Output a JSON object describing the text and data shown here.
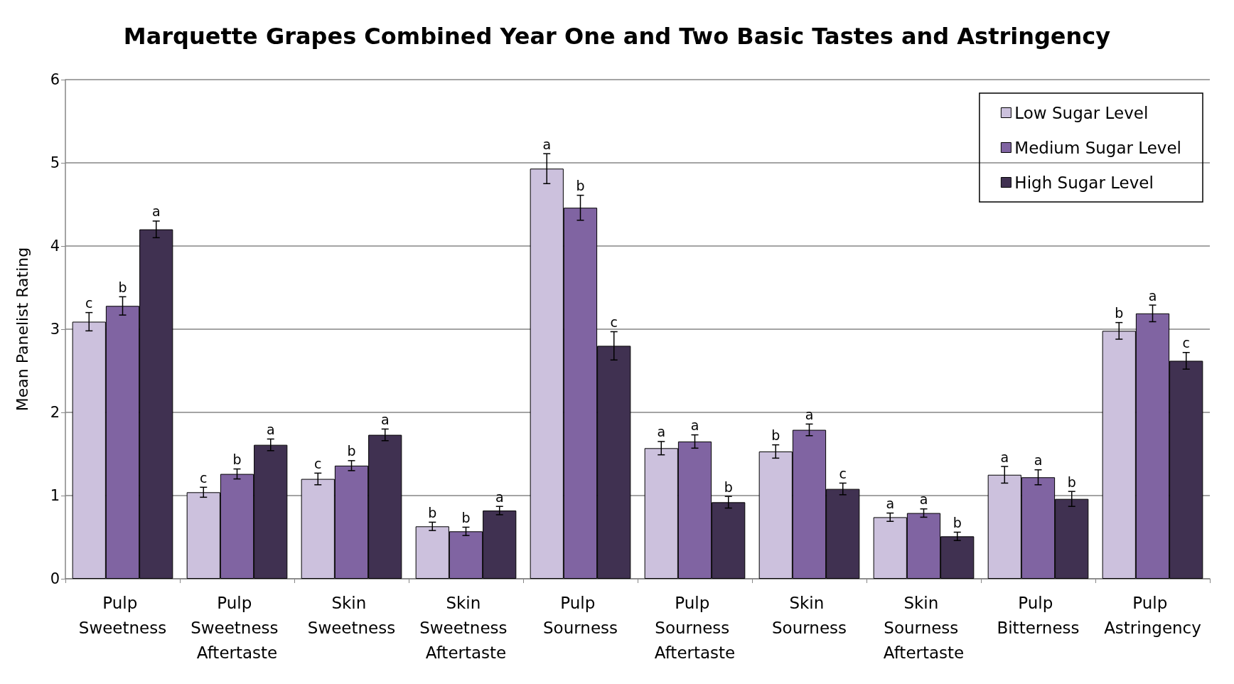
{
  "chart_data": {
    "type": "bar",
    "title": "Marquette Grapes Combined Year One and Two Basic Tastes and Astringency",
    "ylabel": "Mean Panelist Rating",
    "categories": [
      "Pulp Sweetness",
      "Pulp Sweetness Aftertaste",
      "Skin Sweetness",
      "Skin Sweetness Aftertaste",
      "Pulp Sourness",
      "Pulp Sourness Aftertaste",
      "Skin Sourness",
      "Skin Sourness Aftertaste",
      "Pulp Bitterness",
      "Pulp Astringency"
    ],
    "series": [
      {
        "name": "Low Sugar Level",
        "color": "#ccc1dd",
        "values": [
          3.09,
          1.04,
          1.2,
          0.63,
          4.93,
          1.57,
          1.53,
          0.74,
          1.25,
          2.98
        ],
        "errors": [
          0.11,
          0.06,
          0.07,
          0.05,
          0.18,
          0.08,
          0.08,
          0.05,
          0.1,
          0.1
        ],
        "value_labels": [
          "c",
          "c",
          "c",
          "b",
          "a",
          "a",
          "b",
          "a",
          "a",
          "b"
        ]
      },
      {
        "name": "Medium Sugar Level",
        "color": "#8064a2",
        "values": [
          3.28,
          1.26,
          1.36,
          0.57,
          4.46,
          1.65,
          1.79,
          0.79,
          1.22,
          3.19
        ],
        "errors": [
          0.11,
          0.06,
          0.06,
          0.05,
          0.15,
          0.08,
          0.07,
          0.05,
          0.09,
          0.1
        ],
        "value_labels": [
          "b",
          "b",
          "b",
          "b",
          "b",
          "a",
          "a",
          "a",
          "a",
          "a"
        ]
      },
      {
        "name": "High Sugar Level",
        "color": "#403151",
        "values": [
          4.2,
          1.61,
          1.73,
          0.82,
          2.8,
          0.92,
          1.08,
          0.51,
          0.96,
          2.62
        ],
        "errors": [
          0.1,
          0.07,
          0.07,
          0.05,
          0.17,
          0.07,
          0.07,
          0.05,
          0.09,
          0.1
        ],
        "value_labels": [
          "a",
          "a",
          "a",
          "a",
          "c",
          "b",
          "c",
          "b",
          "b",
          "c"
        ]
      }
    ],
    "ylim": [
      0,
      6
    ],
    "yticks": [
      0,
      1,
      2,
      3,
      4,
      5,
      6
    ],
    "grid": "y",
    "legend": "top right"
  }
}
